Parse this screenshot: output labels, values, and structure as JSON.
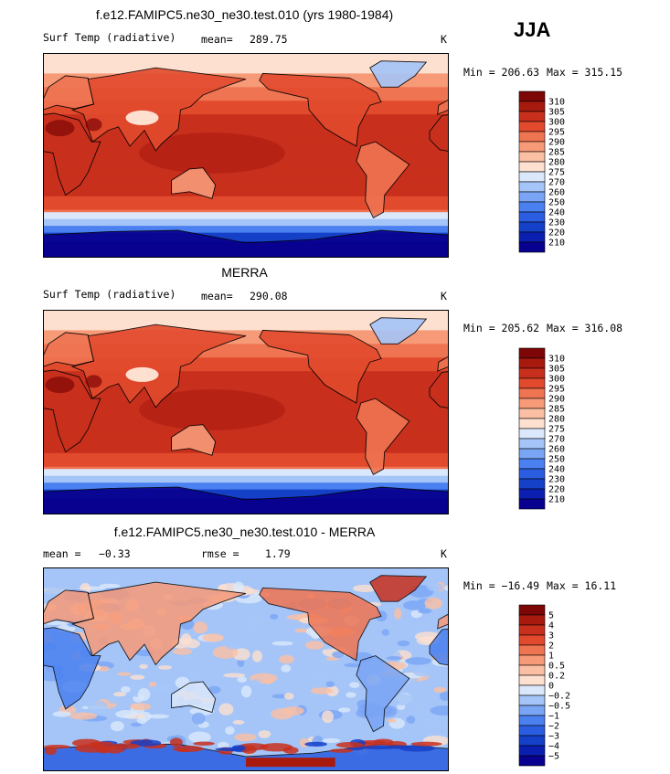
{
  "season": "JJA",
  "colors": {
    "absolute": [
      "#08008f",
      "#0a1fb0",
      "#1540c8",
      "#2a5de0",
      "#4a80f0",
      "#7aa5f5",
      "#a5c5f8",
      "#dbe8fb",
      "#fde0d0",
      "#fbbfa3",
      "#f79a78",
      "#ef7452",
      "#e24a2d",
      "#c8301d",
      "#a81a0e",
      "#7d0606"
    ],
    "difference": [
      "#08008f",
      "#0a1fb0",
      "#1540c8",
      "#2a5de0",
      "#4a80f0",
      "#7aa5f5",
      "#a5c5f8",
      "#dbe8fb",
      "#fde0d0",
      "#fbbfa3",
      "#f79a78",
      "#ef7452",
      "#e24a2d",
      "#c8301d",
      "#a81a0e",
      "#7d0606"
    ]
  },
  "chart_data": [
    {
      "type": "heatmap",
      "title": "f.e12.FAMIPC5.ne30_ne30.test.010 (yrs 1980-1984)",
      "variable": "Surf Temp (radiative)",
      "stat_label": "mean=",
      "stat_value": "289.75",
      "units": "K",
      "min_label": "Min = 206.63",
      "max_label": "Max = 315.15",
      "min": 206.63,
      "max": 315.15,
      "colorbar_levels": [
        "210",
        "220",
        "230",
        "240",
        "250",
        "260",
        "270",
        "275",
        "280",
        "285",
        "290",
        "295",
        "300",
        "305",
        "310"
      ]
    },
    {
      "type": "heatmap",
      "title": "MERRA",
      "variable": "Surf Temp (radiative)",
      "stat_label": "mean=",
      "stat_value": "290.08",
      "units": "K",
      "min_label": "Min = 205.62",
      "max_label": "Max = 316.08",
      "min": 205.62,
      "max": 316.08,
      "colorbar_levels": [
        "210",
        "220",
        "230",
        "240",
        "250",
        "260",
        "270",
        "275",
        "280",
        "285",
        "290",
        "295",
        "300",
        "305",
        "310"
      ]
    },
    {
      "type": "heatmap",
      "title": "f.e12.FAMIPC5.ne30_ne30.test.010 - MERRA",
      "stat_label": "mean =",
      "stat_value": "−0.33",
      "rmse_label": "rmse =",
      "rmse_value": "1.79",
      "units": "K",
      "min_label": "Min = −16.49",
      "max_label": "Max =  16.11",
      "min": -16.49,
      "max": 16.11,
      "colorbar_levels": [
        "−5",
        "−4",
        "−3",
        "−2",
        "−1",
        "−0.5",
        "−0.2",
        "0",
        "0.2",
        "0.5",
        "1",
        "2",
        "3",
        "4",
        "5"
      ]
    }
  ]
}
